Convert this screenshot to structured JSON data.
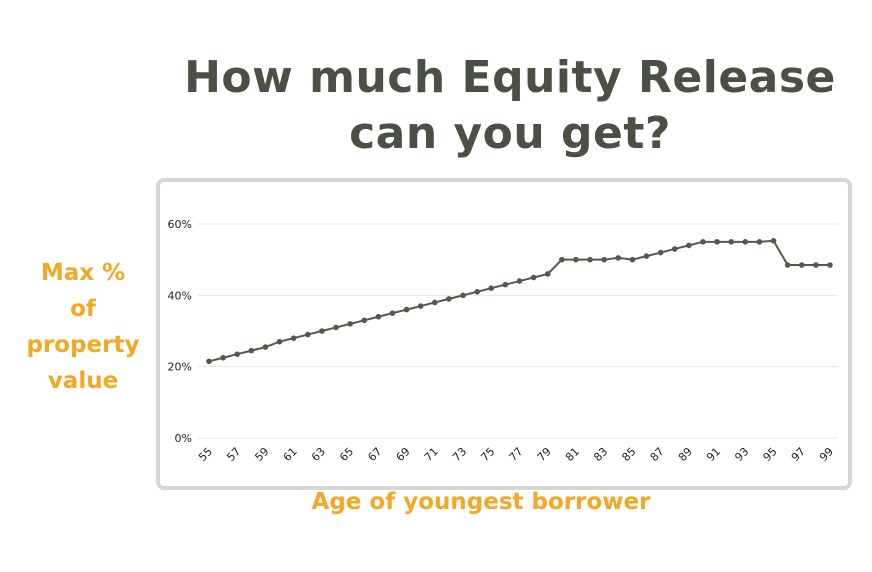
{
  "page": {
    "title_line1": "How much Equity Release",
    "title_line2": "can you get?",
    "ylabel_lines": [
      "Max %",
      "of",
      "property",
      "value"
    ],
    "xlabel": "Age of youngest borrower"
  },
  "chart_data": {
    "type": "line",
    "title": "",
    "xlabel": "Age of youngest borrower",
    "ylabel": "Max % of property value",
    "x": [
      55,
      56,
      57,
      58,
      59,
      60,
      61,
      62,
      63,
      64,
      65,
      66,
      67,
      68,
      69,
      70,
      71,
      72,
      73,
      74,
      75,
      76,
      77,
      78,
      79,
      80,
      81,
      82,
      83,
      84,
      85,
      86,
      87,
      88,
      89,
      90,
      91,
      92,
      93,
      94,
      95,
      96,
      97,
      98,
      99
    ],
    "values": [
      21.5,
      22.5,
      23.5,
      24.5,
      25.5,
      27,
      28,
      29,
      30,
      31,
      32,
      33,
      34,
      35,
      36,
      37,
      38,
      39,
      40,
      41,
      42,
      43,
      44,
      45,
      46,
      50,
      50,
      50,
      50,
      50.5,
      50,
      51,
      52,
      53,
      54,
      55,
      55,
      55,
      55,
      55,
      55.3,
      48.5,
      48.5,
      48.5,
      48.5
    ],
    "xticks": [
      "55",
      "57",
      "59",
      "61",
      "63",
      "65",
      "67",
      "69",
      "71",
      "73",
      "75",
      "77",
      "79",
      "81",
      "83",
      "85",
      "87",
      "89",
      "91",
      "93",
      "95",
      "97",
      "99"
    ],
    "yticks": [
      "0%",
      "20%",
      "40%",
      "60%"
    ],
    "ylim": [
      0,
      60
    ],
    "grid": true,
    "line_color": "#545a4b",
    "accent_color": "#f5a623"
  }
}
